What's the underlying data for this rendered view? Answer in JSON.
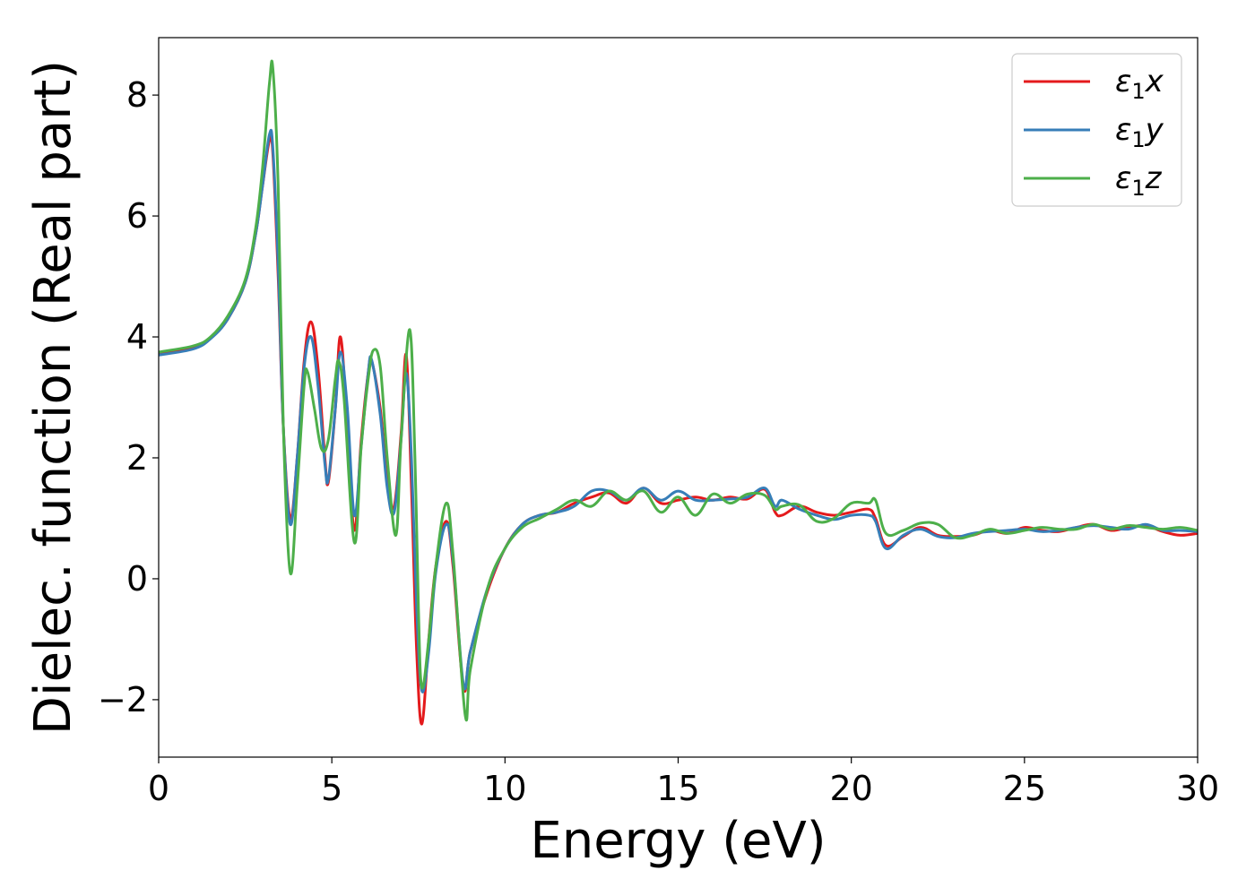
{
  "chart_data": {
    "type": "line",
    "title": "",
    "xlabel": "Energy (eV)",
    "ylabel": "Dielec. function (Real part)",
    "xlim": [
      0,
      30
    ],
    "ylim": [
      -2.95,
      8.95
    ],
    "xticks": [
      0,
      5,
      10,
      15,
      20,
      25,
      30
    ],
    "xtick_labels": [
      "0",
      "5",
      "10",
      "15",
      "20",
      "25",
      "30"
    ],
    "yticks": [
      -2,
      0,
      2,
      4,
      6,
      8
    ],
    "ytick_labels": [
      "−2",
      "0",
      "2",
      "4",
      "6",
      "8"
    ],
    "grid": false,
    "legend_position": "top-right",
    "series": [
      {
        "name": "ε₁x",
        "legend_parts": [
          "ε",
          "1",
          "x"
        ],
        "color": "#e41a1c",
        "points": [
          [
            0,
            3.72
          ],
          [
            1,
            3.82
          ],
          [
            1.5,
            3.98
          ],
          [
            2,
            4.3
          ],
          [
            2.5,
            4.9
          ],
          [
            2.8,
            5.7
          ],
          [
            3.0,
            6.5
          ],
          [
            3.2,
            7.25
          ],
          [
            3.3,
            7.0
          ],
          [
            3.45,
            5.0
          ],
          [
            3.6,
            2.5
          ],
          [
            3.8,
            1.0
          ],
          [
            4.0,
            2.0
          ],
          [
            4.2,
            3.6
          ],
          [
            4.4,
            4.25
          ],
          [
            4.6,
            3.5
          ],
          [
            4.8,
            2.0
          ],
          [
            4.9,
            1.6
          ],
          [
            5.1,
            2.8
          ],
          [
            5.25,
            4.0
          ],
          [
            5.45,
            2.5
          ],
          [
            5.65,
            0.8
          ],
          [
            5.85,
            2.3
          ],
          [
            6.05,
            3.4
          ],
          [
            6.15,
            3.6
          ],
          [
            6.4,
            2.8
          ],
          [
            6.6,
            1.6
          ],
          [
            6.8,
            1.2
          ],
          [
            7.0,
            2.4
          ],
          [
            7.15,
            3.7
          ],
          [
            7.3,
            1.5
          ],
          [
            7.45,
            -1.2
          ],
          [
            7.6,
            -2.4
          ],
          [
            7.8,
            -1.0
          ],
          [
            8.0,
            0.2
          ],
          [
            8.3,
            0.95
          ],
          [
            8.5,
            0.2
          ],
          [
            8.8,
            -1.8
          ],
          [
            9.0,
            -1.2
          ],
          [
            9.5,
            -0.2
          ],
          [
            10,
            0.5
          ],
          [
            10.5,
            0.9
          ],
          [
            11,
            1.05
          ],
          [
            11.5,
            1.1
          ],
          [
            12,
            1.25
          ],
          [
            12.5,
            1.35
          ],
          [
            13,
            1.42
          ],
          [
            13.5,
            1.25
          ],
          [
            14,
            1.5
          ],
          [
            14.5,
            1.25
          ],
          [
            15,
            1.3
          ],
          [
            15.5,
            1.35
          ],
          [
            16,
            1.3
          ],
          [
            16.5,
            1.35
          ],
          [
            17,
            1.32
          ],
          [
            17.5,
            1.48
          ],
          [
            17.8,
            1.1
          ],
          [
            18,
            1.05
          ],
          [
            18.5,
            1.2
          ],
          [
            19,
            1.1
          ],
          [
            19.5,
            1.05
          ],
          [
            20,
            1.1
          ],
          [
            20.5,
            1.15
          ],
          [
            20.7,
            1.0
          ],
          [
            21,
            0.55
          ],
          [
            21.5,
            0.7
          ],
          [
            22,
            0.85
          ],
          [
            22.5,
            0.72
          ],
          [
            23,
            0.7
          ],
          [
            23.5,
            0.72
          ],
          [
            24,
            0.8
          ],
          [
            24.5,
            0.75
          ],
          [
            25,
            0.85
          ],
          [
            25.5,
            0.8
          ],
          [
            26,
            0.78
          ],
          [
            26.5,
            0.85
          ],
          [
            27,
            0.9
          ],
          [
            27.5,
            0.8
          ],
          [
            28,
            0.85
          ],
          [
            28.5,
            0.88
          ],
          [
            29,
            0.78
          ],
          [
            29.5,
            0.72
          ],
          [
            30,
            0.75
          ]
        ]
      },
      {
        "name": "ε₁y",
        "legend_parts": [
          "ε",
          "1",
          "y"
        ],
        "color": "#377eb8",
        "points": [
          [
            0,
            3.7
          ],
          [
            1,
            3.8
          ],
          [
            1.5,
            3.97
          ],
          [
            2,
            4.3
          ],
          [
            2.5,
            4.9
          ],
          [
            2.8,
            5.7
          ],
          [
            3.0,
            6.5
          ],
          [
            3.2,
            7.35
          ],
          [
            3.3,
            7.1
          ],
          [
            3.45,
            5.2
          ],
          [
            3.6,
            2.5
          ],
          [
            3.8,
            0.9
          ],
          [
            4.0,
            2.0
          ],
          [
            4.2,
            3.5
          ],
          [
            4.4,
            4.0
          ],
          [
            4.6,
            3.2
          ],
          [
            4.8,
            1.9
          ],
          [
            4.9,
            1.65
          ],
          [
            5.1,
            2.8
          ],
          [
            5.25,
            3.75
          ],
          [
            5.45,
            2.8
          ],
          [
            5.65,
            1.05
          ],
          [
            5.85,
            2.2
          ],
          [
            6.05,
            3.4
          ],
          [
            6.15,
            3.62
          ],
          [
            6.4,
            2.7
          ],
          [
            6.6,
            1.5
          ],
          [
            6.8,
            1.1
          ],
          [
            7.0,
            2.3
          ],
          [
            7.15,
            3.4
          ],
          [
            7.3,
            2.0
          ],
          [
            7.45,
            -0.5
          ],
          [
            7.6,
            -1.85
          ],
          [
            7.8,
            -1.2
          ],
          [
            8.0,
            0.1
          ],
          [
            8.3,
            0.9
          ],
          [
            8.5,
            0.3
          ],
          [
            8.8,
            -1.75
          ],
          [
            9.0,
            -1.2
          ],
          [
            9.5,
            -0.15
          ],
          [
            10,
            0.5
          ],
          [
            10.5,
            0.9
          ],
          [
            11,
            1.05
          ],
          [
            11.5,
            1.1
          ],
          [
            12,
            1.2
          ],
          [
            12.5,
            1.45
          ],
          [
            13,
            1.45
          ],
          [
            13.5,
            1.3
          ],
          [
            14,
            1.5
          ],
          [
            14.5,
            1.3
          ],
          [
            15,
            1.45
          ],
          [
            15.5,
            1.3
          ],
          [
            16,
            1.3
          ],
          [
            16.5,
            1.32
          ],
          [
            17,
            1.35
          ],
          [
            17.5,
            1.5
          ],
          [
            17.8,
            1.2
          ],
          [
            18,
            1.3
          ],
          [
            18.5,
            1.15
          ],
          [
            19,
            1.05
          ],
          [
            19.5,
            0.98
          ],
          [
            20,
            1.05
          ],
          [
            20.5,
            1.05
          ],
          [
            20.7,
            0.95
          ],
          [
            21,
            0.5
          ],
          [
            21.5,
            0.72
          ],
          [
            22,
            0.82
          ],
          [
            22.5,
            0.7
          ],
          [
            23,
            0.68
          ],
          [
            23.5,
            0.75
          ],
          [
            24,
            0.78
          ],
          [
            24.5,
            0.8
          ],
          [
            25,
            0.82
          ],
          [
            25.5,
            0.78
          ],
          [
            26,
            0.8
          ],
          [
            26.5,
            0.85
          ],
          [
            27,
            0.88
          ],
          [
            27.5,
            0.85
          ],
          [
            28,
            0.82
          ],
          [
            28.5,
            0.9
          ],
          [
            29,
            0.8
          ],
          [
            29.5,
            0.8
          ],
          [
            30,
            0.78
          ]
        ]
      },
      {
        "name": "ε₁z",
        "legend_parts": [
          "ε",
          "1",
          "z"
        ],
        "color": "#4daf4a",
        "points": [
          [
            0,
            3.75
          ],
          [
            1,
            3.85
          ],
          [
            1.5,
            4.0
          ],
          [
            2,
            4.35
          ],
          [
            2.5,
            4.95
          ],
          [
            2.8,
            5.8
          ],
          [
            3.0,
            6.8
          ],
          [
            3.2,
            8.2
          ],
          [
            3.3,
            8.42
          ],
          [
            3.45,
            6.5
          ],
          [
            3.6,
            2.5
          ],
          [
            3.8,
            0.1
          ],
          [
            4.0,
            1.5
          ],
          [
            4.2,
            3.2
          ],
          [
            4.3,
            3.42
          ],
          [
            4.5,
            2.8
          ],
          [
            4.7,
            2.15
          ],
          [
            4.9,
            2.3
          ],
          [
            5.1,
            3.3
          ],
          [
            5.2,
            3.6
          ],
          [
            5.35,
            3.0
          ],
          [
            5.65,
            0.6
          ],
          [
            5.85,
            2.2
          ],
          [
            6.05,
            3.3
          ],
          [
            6.2,
            3.78
          ],
          [
            6.4,
            3.5
          ],
          [
            6.6,
            2.0
          ],
          [
            6.85,
            0.72
          ],
          [
            7.0,
            2.3
          ],
          [
            7.25,
            4.12
          ],
          [
            7.4,
            2.0
          ],
          [
            7.5,
            -0.5
          ],
          [
            7.6,
            -1.8
          ],
          [
            7.8,
            -1.0
          ],
          [
            8.0,
            0.2
          ],
          [
            8.3,
            1.25
          ],
          [
            8.5,
            0.4
          ],
          [
            8.85,
            -2.25
          ],
          [
            9.0,
            -1.5
          ],
          [
            9.5,
            -0.15
          ],
          [
            10,
            0.5
          ],
          [
            10.5,
            0.85
          ],
          [
            11,
            1.0
          ],
          [
            11.5,
            1.15
          ],
          [
            12,
            1.3
          ],
          [
            12.5,
            1.2
          ],
          [
            13,
            1.45
          ],
          [
            13.5,
            1.3
          ],
          [
            14,
            1.45
          ],
          [
            14.5,
            1.1
          ],
          [
            15,
            1.35
          ],
          [
            15.5,
            1.05
          ],
          [
            16,
            1.4
          ],
          [
            16.5,
            1.25
          ],
          [
            17,
            1.4
          ],
          [
            17.5,
            1.38
          ],
          [
            17.8,
            1.15
          ],
          [
            18,
            1.2
          ],
          [
            18.5,
            1.22
          ],
          [
            19,
            0.95
          ],
          [
            19.5,
            1.0
          ],
          [
            20,
            1.25
          ],
          [
            20.5,
            1.25
          ],
          [
            20.7,
            1.3
          ],
          [
            21,
            0.75
          ],
          [
            21.5,
            0.8
          ],
          [
            22,
            0.92
          ],
          [
            22.5,
            0.9
          ],
          [
            23,
            0.68
          ],
          [
            23.5,
            0.72
          ],
          [
            24,
            0.82
          ],
          [
            24.5,
            0.75
          ],
          [
            25,
            0.8
          ],
          [
            25.5,
            0.85
          ],
          [
            26,
            0.82
          ],
          [
            26.5,
            0.82
          ],
          [
            27,
            0.9
          ],
          [
            27.5,
            0.82
          ],
          [
            28,
            0.88
          ],
          [
            28.5,
            0.85
          ],
          [
            29,
            0.82
          ],
          [
            29.5,
            0.85
          ],
          [
            30,
            0.8
          ]
        ]
      }
    ]
  }
}
